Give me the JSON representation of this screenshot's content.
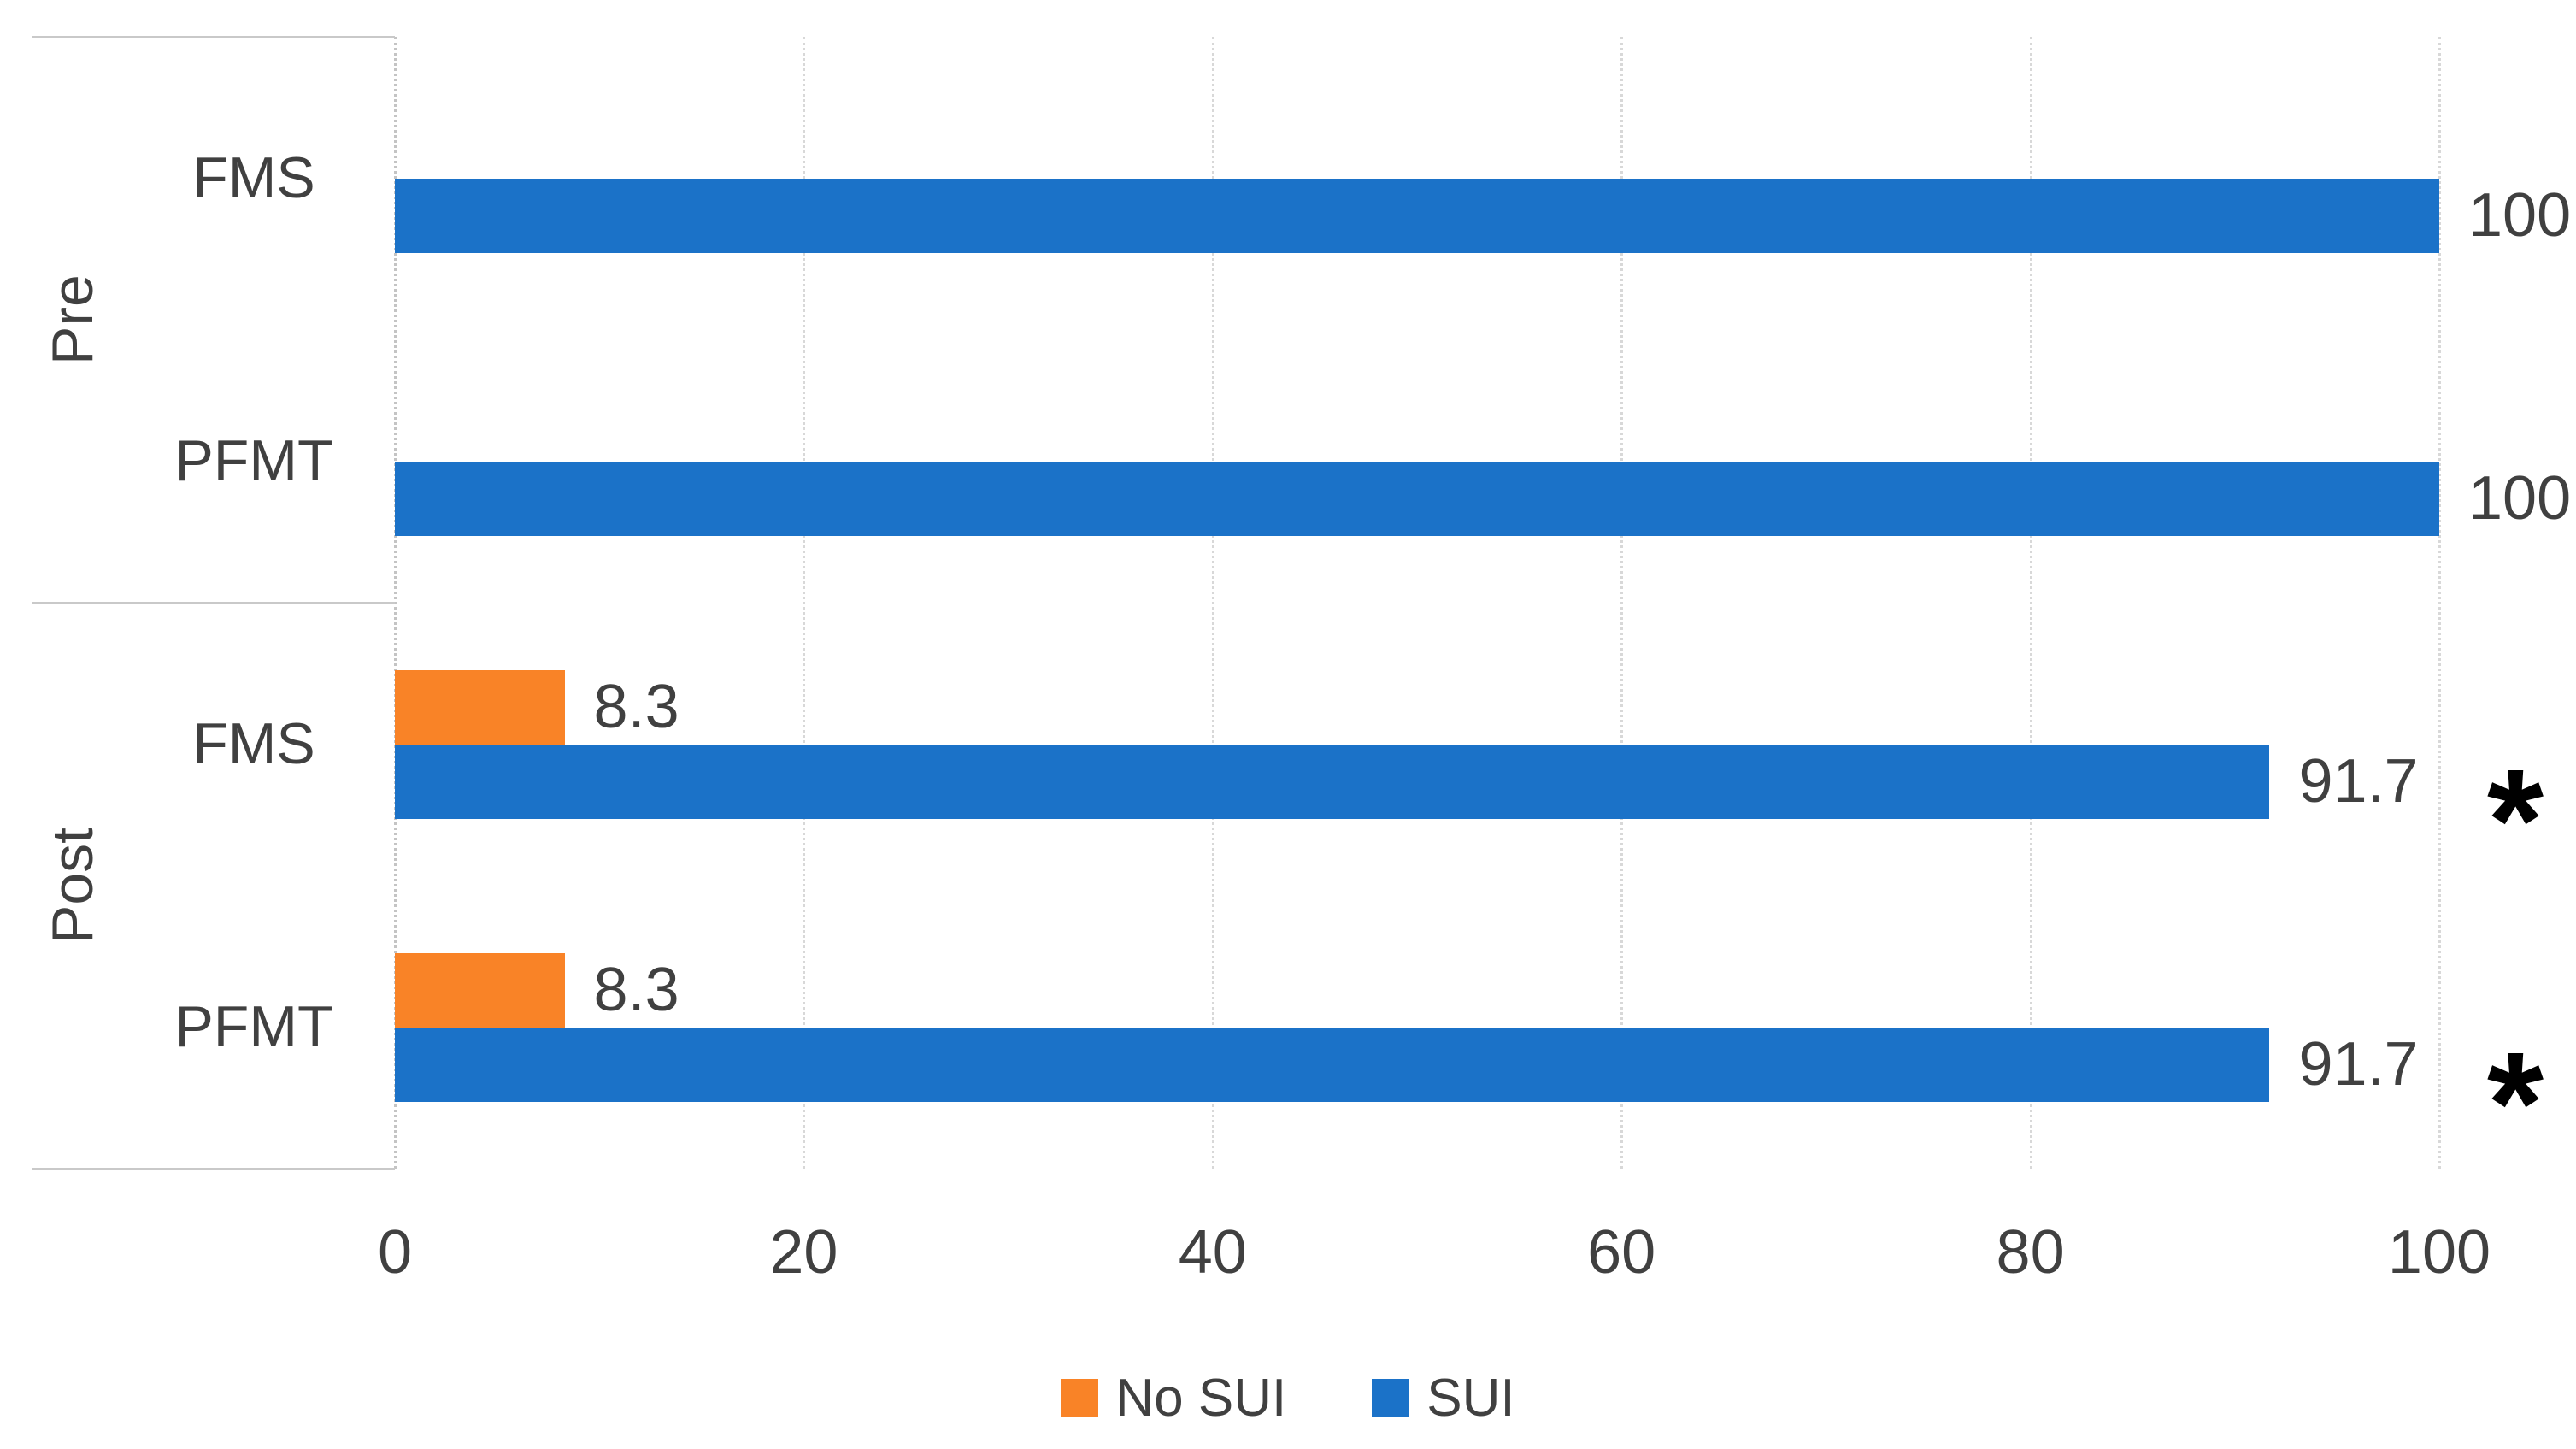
{
  "chart_data": {
    "type": "bar",
    "orientation": "horizontal",
    "title": "",
    "x_axis": {
      "min": 0,
      "max": 100,
      "ticks": [
        0,
        20,
        40,
        60,
        80,
        100
      ]
    },
    "gridlines": true,
    "series": [
      {
        "name": "No SUI",
        "color": "#F98327"
      },
      {
        "name": "SUI",
        "color": "#1B72C8"
      }
    ],
    "rows": [
      {
        "group": "Pre",
        "category": "FMS",
        "bars": [
          {
            "series": "SUI",
            "value": 100,
            "label": "100"
          }
        ]
      },
      {
        "group": "Pre",
        "category": "PFMT",
        "bars": [
          {
            "series": "SUI",
            "value": 100,
            "label": "100"
          }
        ]
      },
      {
        "group": "Post",
        "category": "FMS",
        "bars": [
          {
            "series": "No SUI",
            "value": 8.3,
            "label": "8.3"
          },
          {
            "series": "SUI",
            "value": 91.7,
            "label": "91.7",
            "annotation": "*"
          }
        ]
      },
      {
        "group": "Post",
        "category": "PFMT",
        "bars": [
          {
            "series": "No SUI",
            "value": 8.3,
            "label": "8.3"
          },
          {
            "series": "SUI",
            "value": 91.7,
            "label": "91.7",
            "annotation": "*"
          }
        ]
      }
    ],
    "legend": {
      "position": "bottom",
      "entries": [
        {
          "label": "No SUI",
          "color": "#F98327"
        },
        {
          "label": "SUI",
          "color": "#1B72C8"
        }
      ]
    }
  },
  "colors": {
    "bar_blue": "#1B72C8",
    "bar_orange": "#F98327",
    "gridline": "#D8D8D8",
    "separator": "#C9C9C9",
    "text": "#404040",
    "annotation": "#000000"
  }
}
